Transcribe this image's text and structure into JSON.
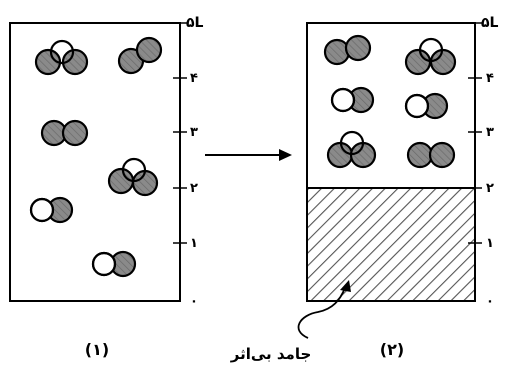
{
  "scale": {
    "ticks": [
      "۰",
      "۱",
      "۲",
      "۳",
      "۴"
    ],
    "top_label": "۵L"
  },
  "panel_1": {
    "label": "(۱)"
  },
  "panel_2": {
    "label": "(۲)",
    "solid_label": "جامد بی‌اثر",
    "solid_fraction_of_height": 0.4
  },
  "colors": {
    "stroke": "#000000",
    "atom_fill": "#808080",
    "atom_empty": "#ffffff",
    "hatch": "#555555",
    "background": "#ffffff"
  }
}
